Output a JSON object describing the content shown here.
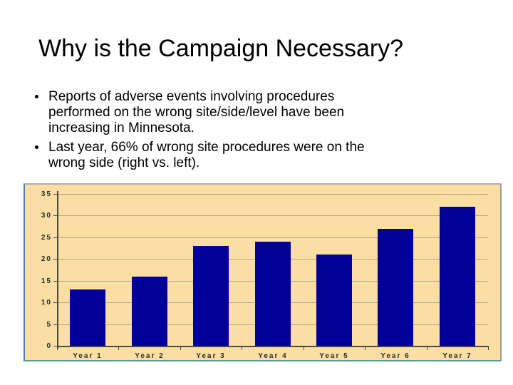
{
  "slide": {
    "title": "Why is the Campaign Necessary?",
    "bullets": [
      "Reports of adverse events involving procedures performed on the wrong site/side/level have been increasing in Minnesota.",
      "Last year, 66% of wrong site procedures were on the wrong side (right vs. left)."
    ]
  },
  "chart_data": {
    "type": "bar",
    "categories": [
      "Year 1",
      "Year 2",
      "Year 3",
      "Year 4",
      "Year 5",
      "Year 6",
      "Year 7"
    ],
    "values": [
      13,
      16,
      23,
      24,
      21,
      27,
      32
    ],
    "title": "",
    "xlabel": "",
    "ylabel": "",
    "ylim": [
      0,
      35
    ],
    "ytick_step": 5,
    "yticks": [
      0,
      5,
      10,
      15,
      20,
      25,
      30,
      35
    ],
    "grid": true,
    "legend": false,
    "bar_color": "#000099",
    "plot_bg": "#FBDEA3",
    "gridline_color": "#B3A78C",
    "axis_color": "#4A4A42",
    "tick_label_color": "#2E2E2E"
  }
}
